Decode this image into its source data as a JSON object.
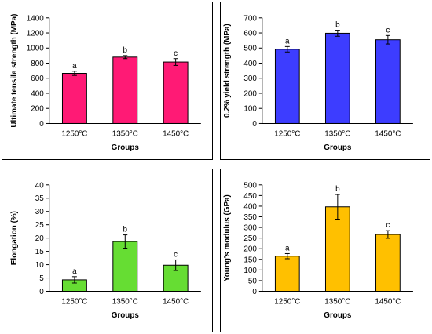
{
  "chart_data": [
    {
      "type": "bar",
      "categories": [
        "1250°C",
        "1350°C",
        "1450°C"
      ],
      "values": [
        665,
        880,
        815
      ],
      "errors": [
        28,
        20,
        45
      ],
      "significance": [
        "a",
        "b",
        "c"
      ],
      "xlabel": "Groups",
      "ylabel": "Ultimate tensile strength (MPa)",
      "ylim": [
        0,
        1400
      ],
      "yticks": [
        0,
        200,
        400,
        600,
        800,
        1000,
        1200,
        1400
      ],
      "color": "#ff1a75"
    },
    {
      "type": "bar",
      "categories": [
        "1250°C",
        "1350°C",
        "1450°C"
      ],
      "values": [
        492,
        598,
        555
      ],
      "errors": [
        18,
        20,
        28
      ],
      "significance": [
        "a",
        "b",
        "c"
      ],
      "xlabel": "Groups",
      "ylabel": "0.2% yield strength (MPa)",
      "ylim": [
        0,
        700
      ],
      "yticks": [
        0,
        100,
        200,
        300,
        400,
        500,
        600,
        700
      ],
      "color": "#3d3dff"
    },
    {
      "type": "bar",
      "categories": [
        "1250°C",
        "1350°C",
        "1450°C"
      ],
      "values": [
        4.3,
        18.7,
        9.8
      ],
      "errors": [
        1.2,
        2.5,
        2.0
      ],
      "significance": [
        "a",
        "b",
        "c"
      ],
      "xlabel": "Groups",
      "ylabel": "Elongation (%)",
      "ylim": [
        0,
        40
      ],
      "yticks": [
        0,
        5,
        10,
        15,
        20,
        25,
        30,
        35,
        40
      ],
      "color": "#66dd33"
    },
    {
      "type": "bar",
      "categories": [
        "1250°C",
        "1350°C",
        "1450°C"
      ],
      "values": [
        165,
        397,
        267
      ],
      "errors": [
        12,
        58,
        18
      ],
      "significance": [
        "a",
        "b",
        "c"
      ],
      "xlabel": "Groups",
      "ylabel": "Young's modulus (GPa)",
      "ylim": [
        0,
        500
      ],
      "yticks": [
        0,
        50,
        100,
        150,
        200,
        250,
        300,
        350,
        400,
        450,
        500
      ],
      "color": "#ffc000"
    }
  ]
}
